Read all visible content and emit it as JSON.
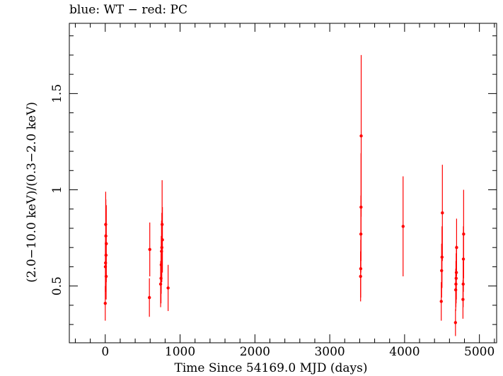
{
  "chart_data": {
    "type": "scatter",
    "title": "blue: WT − red: PC",
    "xlabel": "Time Since 54169.0 MJD (days)",
    "ylabel": "(2.0−10.0 keV)/(0.3−2.0 keV)",
    "xlim": [
      -480,
      5230
    ],
    "ylim": [
      0.205,
      1.865
    ],
    "x_ticks": [
      0,
      1000,
      2000,
      3000,
      4000,
      5000
    ],
    "x_tick_labels": [
      "0",
      "1000",
      "2000",
      "3000",
      "4000",
      "5000"
    ],
    "y_ticks": [
      0.5,
      1,
      1.5
    ],
    "y_tick_labels": [
      "0.5",
      "1",
      "1.5"
    ],
    "grid": false,
    "series": [
      {
        "name": "PC",
        "color": "#ff0000",
        "points": [
          {
            "x": 0,
            "y": 0.41,
            "err": 0.09
          },
          {
            "x": 2,
            "y": 0.6,
            "err": 0.13
          },
          {
            "x": 4,
            "y": 0.62,
            "err": 0.15
          },
          {
            "x": 6,
            "y": 0.82,
            "err": 0.17
          },
          {
            "x": 8,
            "y": 0.76,
            "err": 0.19
          },
          {
            "x": 10,
            "y": 0.66,
            "err": 0.16
          },
          {
            "x": 12,
            "y": 0.55,
            "err": 0.12
          },
          {
            "x": 14,
            "y": 0.72,
            "err": 0.2
          },
          {
            "x": 590,
            "y": 0.44,
            "err": 0.1
          },
          {
            "x": 595,
            "y": 0.69,
            "err": 0.14
          },
          {
            "x": 740,
            "y": 0.51,
            "err": 0.12
          },
          {
            "x": 745,
            "y": 0.54,
            "err": 0.13
          },
          {
            "x": 748,
            "y": 0.61,
            "err": 0.15
          },
          {
            "x": 752,
            "y": 0.68,
            "err": 0.16
          },
          {
            "x": 756,
            "y": 0.7,
            "err": 0.18
          },
          {
            "x": 760,
            "y": 0.82,
            "err": 0.23
          },
          {
            "x": 764,
            "y": 0.74,
            "err": 0.17
          },
          {
            "x": 840,
            "y": 0.49,
            "err": 0.12
          },
          {
            "x": 3412,
            "y": 0.55,
            "err": 0.13
          },
          {
            "x": 3414,
            "y": 0.59,
            "err": 0.15
          },
          {
            "x": 3416,
            "y": 0.77,
            "err": 0.2
          },
          {
            "x": 3418,
            "y": 0.91,
            "err": 0.28
          },
          {
            "x": 3420,
            "y": 1.28,
            "err": 0.42
          },
          {
            "x": 3980,
            "y": 0.81,
            "err": 0.26
          },
          {
            "x": 4490,
            "y": 0.42,
            "err": 0.1
          },
          {
            "x": 4495,
            "y": 0.58,
            "err": 0.14
          },
          {
            "x": 4500,
            "y": 0.65,
            "err": 0.16
          },
          {
            "x": 4505,
            "y": 0.88,
            "err": 0.25
          },
          {
            "x": 4680,
            "y": 0.31,
            "err": 0.07
          },
          {
            "x": 4683,
            "y": 0.48,
            "err": 0.11
          },
          {
            "x": 4686,
            "y": 0.51,
            "err": 0.12
          },
          {
            "x": 4689,
            "y": 0.54,
            "err": 0.13
          },
          {
            "x": 4692,
            "y": 0.57,
            "err": 0.14
          },
          {
            "x": 4695,
            "y": 0.7,
            "err": 0.15
          },
          {
            "x": 4780,
            "y": 0.43,
            "err": 0.1
          },
          {
            "x": 4783,
            "y": 0.51,
            "err": 0.12
          },
          {
            "x": 4786,
            "y": 0.64,
            "err": 0.17
          },
          {
            "x": 4789,
            "y": 0.77,
            "err": 0.23
          }
        ]
      }
    ]
  }
}
